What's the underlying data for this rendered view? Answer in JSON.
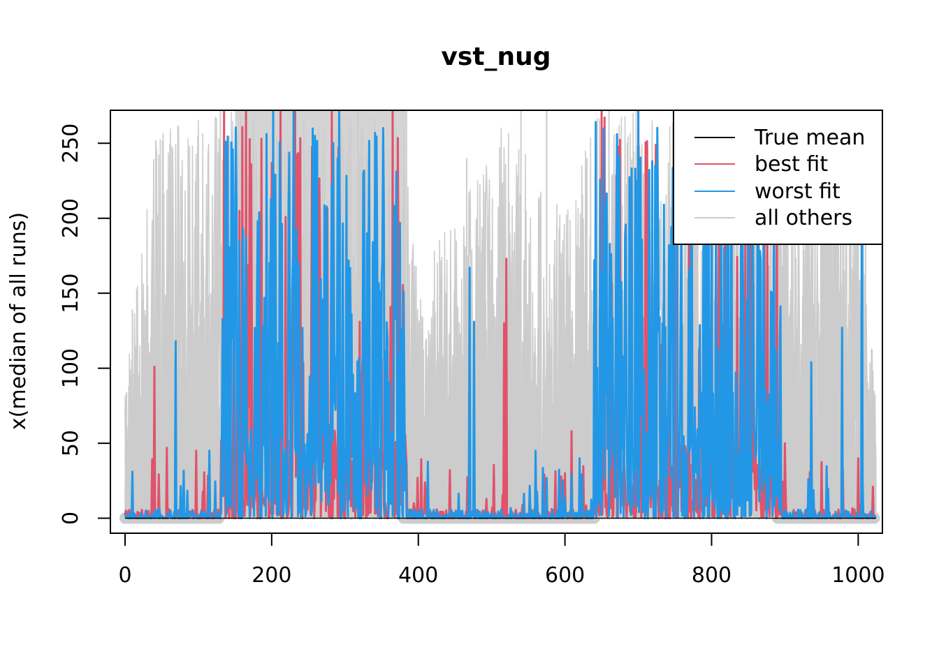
{
  "chart_data": {
    "type": "line",
    "title": "vst_nug",
    "xlabel": "",
    "ylabel": "x(median of all runs)",
    "xlim": [
      -20,
      1033
    ],
    "ylim": [
      -10,
      272
    ],
    "x_ticks": [
      0,
      200,
      400,
      600,
      800,
      1000
    ],
    "y_ticks": [
      0,
      50,
      100,
      150,
      200,
      250
    ],
    "grid": false,
    "legend_position": "top-right",
    "legend": [
      "True mean",
      "best fit",
      "worst fit",
      "all others"
    ],
    "n_points": 1025,
    "series": [
      {
        "name": "True mean",
        "color": "#000000",
        "points": [
          [
            0,
            0
          ],
          [
            1024,
            0
          ]
        ]
      },
      {
        "name": "all others",
        "color": "#cccccc",
        "approx_envelope": [
          [
            0,
            85
          ],
          [
            15,
            150
          ],
          [
            40,
            250
          ],
          [
            60,
            272
          ],
          [
            100,
            272
          ],
          [
            130,
            272
          ],
          [
            200,
            272
          ],
          [
            300,
            272
          ],
          [
            380,
            272
          ],
          [
            400,
            150
          ],
          [
            430,
            200
          ],
          [
            470,
            220
          ],
          [
            520,
            272
          ],
          [
            560,
            230
          ],
          [
            600,
            210
          ],
          [
            640,
            272
          ],
          [
            700,
            272
          ],
          [
            800,
            272
          ],
          [
            890,
            272
          ],
          [
            920,
            200
          ],
          [
            960,
            272
          ],
          [
            1000,
            250
          ],
          [
            1024,
            80
          ]
        ],
        "spike_points": [
          [
            2,
            84
          ],
          [
            10,
            139
          ],
          [
            16,
            153
          ],
          [
            42,
            252
          ],
          [
            130,
            272
          ],
          [
            318,
            272
          ],
          [
            401,
            130
          ],
          [
            430,
            160
          ],
          [
            466,
            240
          ],
          [
            490,
            120
          ],
          [
            540,
            272
          ],
          [
            575,
            272
          ],
          [
            630,
            240
          ],
          [
            660,
            272
          ],
          [
            900,
            240
          ],
          [
            1010,
            200
          ],
          [
            1024,
            43
          ]
        ]
      },
      {
        "name": "best fit",
        "color": "#df536b",
        "peaks": [
          [
            40,
            101
          ],
          [
            57,
            47
          ],
          [
            97,
            45
          ],
          [
            135,
            272
          ],
          [
            165,
            272
          ],
          [
            212,
            272
          ],
          [
            232,
            272
          ],
          [
            262,
            125
          ],
          [
            282,
            272
          ],
          [
            320,
            131
          ],
          [
            338,
            182
          ],
          [
            365,
            272
          ],
          [
            410,
            18
          ],
          [
            443,
            32
          ],
          [
            517,
            130
          ],
          [
            520,
            173
          ],
          [
            600,
            30
          ],
          [
            609,
            58
          ],
          [
            650,
            272
          ],
          [
            700,
            272
          ],
          [
            800,
            272
          ],
          [
            900,
            50
          ],
          [
            1000,
            40
          ],
          [
            1020,
            21
          ]
        ]
      },
      {
        "name": "worst fit",
        "color": "#2297e6",
        "peaks": [
          [
            10,
            31
          ],
          [
            69,
            118
          ],
          [
            115,
            45
          ],
          [
            150,
            175
          ],
          [
            183,
            204
          ],
          [
            202,
            272
          ],
          [
            230,
            272
          ],
          [
            258,
            146
          ],
          [
            292,
            272
          ],
          [
            330,
            190
          ],
          [
            350,
            160
          ],
          [
            380,
            151
          ],
          [
            470,
            167
          ],
          [
            476,
            131
          ],
          [
            560,
            45
          ],
          [
            620,
            40
          ],
          [
            640,
            172
          ],
          [
            700,
            272
          ],
          [
            750,
            272
          ],
          [
            850,
            272
          ],
          [
            885,
            272
          ],
          [
            936,
            104
          ],
          [
            978,
            127
          ],
          [
            1005,
            272
          ]
        ]
      }
    ],
    "markers": {
      "color": "#cccccc",
      "description": "open circles along y≈0 (dense run of zero values)",
      "ranges": [
        [
          0,
          130
        ],
        [
          380,
          640
        ],
        [
          890,
          1024
        ]
      ]
    }
  },
  "colors": {
    "true_mean": "#000000",
    "best_fit": "#df536b",
    "worst_fit": "#2297e6",
    "others": "#cccccc"
  }
}
